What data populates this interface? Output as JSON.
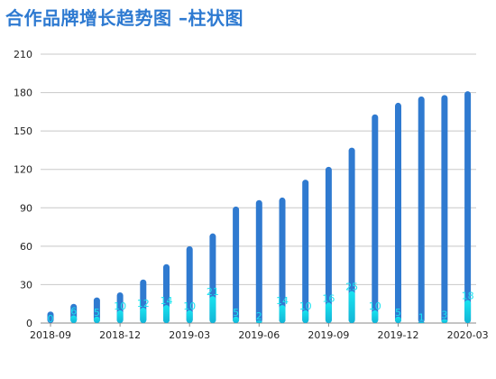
{
  "chart_data": {
    "type": "bar",
    "title": "合作品牌增长趋势图 –柱状图",
    "colors": {
      "total": "#2f7ad0",
      "new": "#19e3f0",
      "grid": "#c8c8c8",
      "title": "#2e7ad1"
    },
    "ylim": [
      0,
      210
    ],
    "yticks": [
      "0",
      "30",
      "60",
      "90",
      "120",
      "150",
      "180",
      "210"
    ],
    "xtick_labels": [
      "2018-09",
      "2018-12",
      "2019-03",
      "2019-06",
      "2019-09",
      "2019-12",
      "2020-03"
    ],
    "categories": [
      "2018-09",
      "2018-10",
      "2018-11",
      "2018-12",
      "2019-01",
      "2019-02",
      "2019-03",
      "2019-04",
      "2019-05",
      "2019-06",
      "2019-07",
      "2019-08",
      "2019-09",
      "2019-10",
      "2019-11",
      "2019-12",
      "2020-01",
      "2020-02",
      "2020-03"
    ],
    "series": [
      {
        "values": [
          9,
          15,
          20,
          24,
          34,
          46,
          60,
          70,
          91,
          96,
          98,
          112,
          122,
          137,
          163,
          172,
          177,
          178,
          181
        ]
      },
      {
        "values": [
          0,
          6,
          5,
          10,
          12,
          14,
          10,
          21,
          5,
          2,
          14,
          10,
          16,
          25,
          10,
          5,
          1,
          3,
          18
        ]
      }
    ],
    "grid": true
  }
}
